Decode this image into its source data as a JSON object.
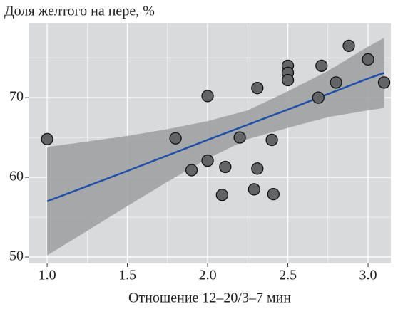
{
  "chart_data": {
    "type": "scatter",
    "title": "Доля желтого на пере, %",
    "xlabel": "Отношение 12–20/3–7 мин",
    "x": [
      1.0,
      1.8,
      1.9,
      2.0,
      2.0,
      2.09,
      2.11,
      2.2,
      2.29,
      2.31,
      2.31,
      2.4,
      2.41,
      2.5,
      2.5,
      2.5,
      2.69,
      2.71,
      2.8,
      2.88,
      3.0,
      3.1
    ],
    "values": [
      64.8,
      64.9,
      60.9,
      62.1,
      70.2,
      57.8,
      61.3,
      65.0,
      58.5,
      71.2,
      61.1,
      64.7,
      57.9,
      74.0,
      73.1,
      72.2,
      70.0,
      74.0,
      71.9,
      76.5,
      74.8,
      71.9
    ],
    "color": "#636466",
    "fit": {
      "color": "#1f4fa8",
      "band_color": "#9b9d9f",
      "x": [
        1.0,
        1.25,
        1.5,
        1.75,
        2.0,
        2.25,
        2.5,
        2.75,
        3.0,
        3.1
      ],
      "values": [
        57.0,
        58.9,
        60.8,
        62.75,
        64.7,
        66.6,
        68.5,
        70.45,
        72.4,
        73.1
      ],
      "lower": [
        50.2,
        53.3,
        56.4,
        59.45,
        62.35,
        64.8,
        66.2,
        67.55,
        68.4,
        68.7
      ],
      "upper": [
        63.8,
        64.5,
        65.2,
        66.05,
        67.05,
        68.4,
        70.8,
        73.35,
        76.4,
        77.5
      ]
    },
    "xlim": [
      0.884,
      3.142
    ],
    "ylim": [
      49.2,
      79.3
    ],
    "xticks": [
      {
        "value": 1.0,
        "label": "1.0"
      },
      {
        "value": 1.5,
        "label": "1.5"
      },
      {
        "value": 2.0,
        "label": "2.0"
      },
      {
        "value": 2.5,
        "label": "2.5"
      },
      {
        "value": 3.0,
        "label": "3.0"
      }
    ],
    "yticks": [
      50,
      60,
      70
    ],
    "xminor": [
      1.25,
      1.75,
      2.25,
      2.75
    ],
    "yminor": [
      55,
      65,
      75
    ],
    "grid": true
  }
}
